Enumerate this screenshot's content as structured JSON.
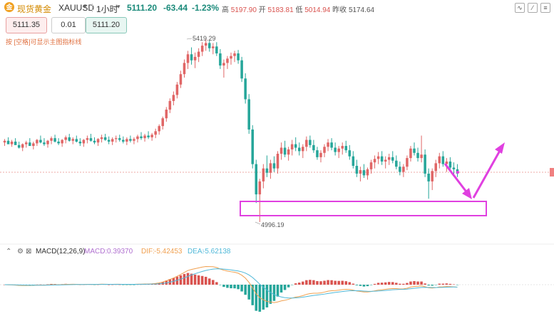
{
  "header": {
    "symbol_icon": "gold-coin-icon",
    "symbol_icon_glyph": "金",
    "symbol_name": "现货黄金",
    "symbol_code": "XAUUSD",
    "caret": "▾",
    "interval": "1小时",
    "last_price": "5111.20",
    "change": "-63.44",
    "change_pct": "-1.23%",
    "high_label": "高",
    "high": "5197.90",
    "open_label": "开",
    "open": "5183.81",
    "low_label": "低",
    "low": "5014.94",
    "prev_label": "昨收",
    "prev": "5174.64",
    "tools": [
      {
        "name": "indicator-icon",
        "glyph": "∿"
      },
      {
        "name": "draw-icon",
        "glyph": "⁄"
      },
      {
        "name": "settings-icon",
        "glyph": "≡"
      }
    ]
  },
  "order": {
    "sell_price": "5111.35",
    "qty": "0.01",
    "buy_price": "5111.20",
    "hint": "按 [空格]可显示主图指标线"
  },
  "macd": {
    "label": "MACD(12,26,9)",
    "macd_label": "MACD:",
    "macd_value": "0.39370",
    "dif_label": "DIF:",
    "dif_value": "-5.42453",
    "dea_label": "DEA:",
    "dea_value": "-5.62138",
    "colors": {
      "up": "#d9534f",
      "down": "#26a69a",
      "dif": "#f0a050",
      "dea": "#4fb8d8"
    }
  },
  "chart_data": {
    "type": "candlestick",
    "y_high_label": "5419.29",
    "y_low_label": "4996.19",
    "ylim": [
      4960,
      5440
    ],
    "colors": {
      "up": "#e06666",
      "down": "#26a69a"
    },
    "candles": [
      [
        5180,
        5188,
        5172,
        5184
      ],
      [
        5184,
        5192,
        5178,
        5176
      ],
      [
        5176,
        5186,
        5170,
        5182
      ],
      [
        5182,
        5190,
        5176,
        5174
      ],
      [
        5174,
        5182,
        5166,
        5168
      ],
      [
        5168,
        5178,
        5160,
        5176
      ],
      [
        5176,
        5184,
        5168,
        5180
      ],
      [
        5180,
        5190,
        5174,
        5172
      ],
      [
        5172,
        5182,
        5164,
        5178
      ],
      [
        5178,
        5188,
        5172,
        5186
      ],
      [
        5186,
        5196,
        5178,
        5180
      ],
      [
        5180,
        5190,
        5172,
        5176
      ],
      [
        5176,
        5186,
        5168,
        5184
      ],
      [
        5184,
        5194,
        5176,
        5190
      ],
      [
        5190,
        5198,
        5180,
        5182
      ],
      [
        5182,
        5190,
        5174,
        5178
      ],
      [
        5178,
        5188,
        5170,
        5186
      ],
      [
        5186,
        5196,
        5178,
        5192
      ],
      [
        5192,
        5200,
        5182,
        5184
      ],
      [
        5184,
        5192,
        5176,
        5188
      ],
      [
        5188,
        5196,
        5180,
        5182
      ],
      [
        5182,
        5190,
        5172,
        5178
      ],
      [
        5178,
        5188,
        5170,
        5186
      ],
      [
        5186,
        5196,
        5178,
        5190
      ],
      [
        5190,
        5200,
        5182,
        5184
      ],
      [
        5184,
        5192,
        5176,
        5180
      ],
      [
        5180,
        5190,
        5172,
        5188
      ],
      [
        5188,
        5198,
        5180,
        5192
      ],
      [
        5192,
        5200,
        5184,
        5186
      ],
      [
        5186,
        5194,
        5176,
        5182
      ],
      [
        5182,
        5192,
        5174,
        5188
      ],
      [
        5188,
        5196,
        5180,
        5190
      ],
      [
        5190,
        5198,
        5182,
        5186
      ],
      [
        5186,
        5194,
        5178,
        5182
      ],
      [
        5182,
        5192,
        5174,
        5188
      ],
      [
        5188,
        5196,
        5180,
        5184
      ],
      [
        5184,
        5192,
        5176,
        5188
      ],
      [
        5188,
        5198,
        5180,
        5194
      ],
      [
        5194,
        5204,
        5186,
        5190
      ],
      [
        5190,
        5200,
        5182,
        5196
      ],
      [
        5196,
        5206,
        5188,
        5192
      ],
      [
        5192,
        5202,
        5184,
        5198
      ],
      [
        5198,
        5212,
        5190,
        5206
      ],
      [
        5206,
        5222,
        5198,
        5218
      ],
      [
        5218,
        5240,
        5210,
        5236
      ],
      [
        5236,
        5262,
        5228,
        5256
      ],
      [
        5256,
        5282,
        5248,
        5276
      ],
      [
        5276,
        5298,
        5266,
        5290
      ],
      [
        5290,
        5320,
        5282,
        5314
      ],
      [
        5314,
        5346,
        5306,
        5338
      ],
      [
        5338,
        5372,
        5330,
        5364
      ],
      [
        5364,
        5392,
        5350,
        5384
      ],
      [
        5384,
        5400,
        5360,
        5370
      ],
      [
        5370,
        5388,
        5352,
        5378
      ],
      [
        5378,
        5398,
        5366,
        5390
      ],
      [
        5390,
        5412,
        5380,
        5404
      ],
      [
        5404,
        5419,
        5392,
        5410
      ],
      [
        5410,
        5416,
        5390,
        5398
      ],
      [
        5398,
        5410,
        5384,
        5402
      ],
      [
        5402,
        5412,
        5380,
        5386
      ],
      [
        5386,
        5396,
        5350,
        5358
      ],
      [
        5358,
        5372,
        5330,
        5364
      ],
      [
        5364,
        5380,
        5350,
        5374
      ],
      [
        5374,
        5388,
        5360,
        5380
      ],
      [
        5380,
        5392,
        5366,
        5386
      ],
      [
        5386,
        5394,
        5362,
        5370
      ],
      [
        5370,
        5378,
        5320,
        5328
      ],
      [
        5328,
        5340,
        5270,
        5280
      ],
      [
        5280,
        5292,
        5200,
        5210
      ],
      [
        5210,
        5220,
        5120,
        5130
      ],
      [
        5130,
        5140,
        5040,
        5060
      ],
      [
        5060,
        5096,
        4996,
        5090
      ],
      [
        5090,
        5130,
        5074,
        5120
      ],
      [
        5120,
        5150,
        5100,
        5110
      ],
      [
        5110,
        5140,
        5096,
        5132
      ],
      [
        5132,
        5148,
        5112,
        5120
      ],
      [
        5120,
        5160,
        5108,
        5154
      ],
      [
        5154,
        5180,
        5140,
        5168
      ],
      [
        5168,
        5184,
        5146,
        5152
      ],
      [
        5152,
        5170,
        5138,
        5164
      ],
      [
        5164,
        5186,
        5150,
        5176
      ],
      [
        5176,
        5192,
        5160,
        5168
      ],
      [
        5168,
        5180,
        5150,
        5160
      ],
      [
        5160,
        5176,
        5144,
        5170
      ],
      [
        5170,
        5194,
        5160,
        5186
      ],
      [
        5186,
        5196,
        5168,
        5174
      ],
      [
        5174,
        5186,
        5156,
        5162
      ],
      [
        5162,
        5170,
        5140,
        5146
      ],
      [
        5146,
        5162,
        5134,
        5156
      ],
      [
        5156,
        5176,
        5146,
        5170
      ],
      [
        5170,
        5188,
        5160,
        5180
      ],
      [
        5180,
        5190,
        5162,
        5168
      ],
      [
        5168,
        5180,
        5150,
        5158
      ],
      [
        5158,
        5172,
        5144,
        5166
      ],
      [
        5166,
        5180,
        5152,
        5172
      ],
      [
        5172,
        5184,
        5156,
        5162
      ],
      [
        5162,
        5174,
        5140,
        5148
      ],
      [
        5148,
        5160,
        5120,
        5126
      ],
      [
        5126,
        5140,
        5100,
        5108
      ],
      [
        5108,
        5124,
        5090,
        5116
      ],
      [
        5116,
        5130,
        5098,
        5104
      ],
      [
        5104,
        5122,
        5094,
        5118
      ],
      [
        5118,
        5140,
        5108,
        5134
      ],
      [
        5134,
        5150,
        5120,
        5142
      ],
      [
        5142,
        5158,
        5130,
        5148
      ],
      [
        5148,
        5160,
        5128,
        5136
      ],
      [
        5136,
        5148,
        5120,
        5140
      ],
      [
        5140,
        5154,
        5128,
        5146
      ],
      [
        5146,
        5160,
        5132,
        5138
      ],
      [
        5138,
        5150,
        5118,
        5124
      ],
      [
        5124,
        5136,
        5104,
        5112
      ],
      [
        5112,
        5130,
        5100,
        5124
      ],
      [
        5124,
        5150,
        5116,
        5144
      ],
      [
        5144,
        5172,
        5136,
        5166
      ],
      [
        5166,
        5180,
        5150,
        5156
      ],
      [
        5156,
        5168,
        5136,
        5144
      ],
      [
        5144,
        5196,
        5134,
        5152
      ],
      [
        5152,
        5164,
        5100,
        5108
      ],
      [
        5108,
        5120,
        5050,
        5090
      ],
      [
        5090,
        5120,
        5070,
        5114
      ],
      [
        5114,
        5140,
        5100,
        5132
      ],
      [
        5132,
        5156,
        5120,
        5148
      ],
      [
        5148,
        5160,
        5124,
        5130
      ],
      [
        5130,
        5144,
        5112,
        5136
      ],
      [
        5136,
        5146,
        5116,
        5122
      ],
      [
        5122,
        5134,
        5104,
        5118
      ],
      [
        5118,
        5130,
        5100,
        5108
      ]
    ]
  }
}
